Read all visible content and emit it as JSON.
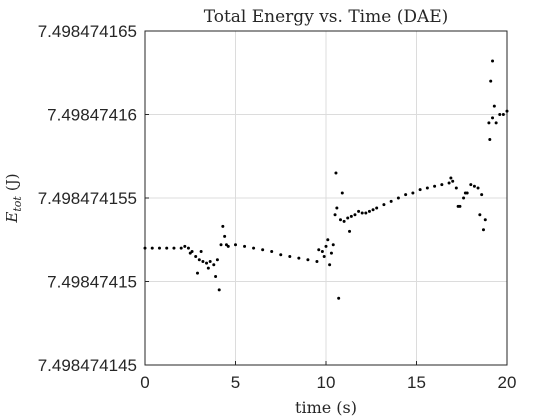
{
  "chart_data": {
    "type": "scatter",
    "title": "Total Energy vs. Time (DAE)",
    "xlabel": "time (s)",
    "ylabel": "E_tot (J)",
    "ylabel_main": "E",
    "ylabel_sub": "tot",
    "ylabel_unit": "(J)",
    "xlim": [
      0,
      20
    ],
    "ylim": [
      7.498474145,
      7.498474165
    ],
    "x_ticks": [
      0,
      5,
      10,
      15,
      20
    ],
    "x_tick_labels": [
      "0",
      "5",
      "10",
      "15",
      "20"
    ],
    "y_ticks": [
      7.498474145,
      7.49847415,
      7.498474155,
      7.49847416,
      7.498474165
    ],
    "y_tick_labels": [
      "7.498474145",
      "7.49847415",
      "7.498474155",
      "7.49847416",
      "7.498474165"
    ],
    "grid": true,
    "marker_color": "#000000",
    "series": [
      {
        "x": [
          0.0,
          0.4,
          0.8,
          1.2,
          1.6,
          2.0,
          2.2,
          2.4,
          2.6,
          2.8,
          3.0,
          3.2,
          3.4,
          3.6,
          3.8,
          4.0,
          4.2,
          2.5,
          2.9,
          3.1,
          3.5,
          3.9,
          4.1,
          4.3,
          4.4,
          4.6,
          4.5,
          5.0,
          5.5,
          6.0,
          6.5,
          7.0,
          7.5,
          8.0,
          8.5,
          9.0,
          9.5,
          9.8,
          10.0,
          10.2,
          9.6,
          9.9,
          10.1,
          10.3,
          10.4,
          10.5,
          10.6,
          10.8,
          11.0,
          11.2,
          11.4,
          11.6,
          11.8,
          12.0,
          12.2,
          12.4,
          12.6,
          10.55,
          10.7,
          10.9,
          11.3,
          12.8,
          13.2,
          13.6,
          14.0,
          14.4,
          14.8,
          15.2,
          15.6,
          16.0,
          16.4,
          16.8,
          17.0,
          17.2,
          17.4,
          17.6,
          17.8,
          18.0,
          18.2,
          18.4,
          18.6,
          16.9,
          17.3,
          17.7,
          18.5,
          18.7,
          18.8,
          19.0,
          19.2,
          19.4,
          19.6,
          19.8,
          20.0,
          19.1,
          19.2,
          19.3,
          19.05
        ],
        "y": [
          7.498474152,
          7.498474152,
          7.498474152,
          7.498474152,
          7.498474152,
          7.498474152,
          7.4984741521,
          7.498474152,
          7.4984741518,
          7.4984741515,
          7.4984741513,
          7.4984741512,
          7.4984741511,
          7.4984741512,
          7.498474151,
          7.4984741513,
          7.4984741522,
          7.4984741517,
          7.4984741505,
          7.4984741518,
          7.4984741508,
          7.4984741503,
          7.4984741495,
          7.4984741533,
          7.4984741527,
          7.4984741521,
          7.4984741522,
          7.4984741522,
          7.4984741521,
          7.498474152,
          7.4984741519,
          7.4984741518,
          7.4984741516,
          7.4984741515,
          7.4984741514,
          7.4984741513,
          7.4984741512,
          7.4984741518,
          7.4984741521,
          7.498474151,
          7.4984741519,
          7.4984741515,
          7.4984741525,
          7.4984741517,
          7.4984741522,
          7.498474154,
          7.4984741544,
          7.4984741537,
          7.4984741536,
          7.4984741538,
          7.4984741539,
          7.498474154,
          7.4984741542,
          7.4984741541,
          7.4984741541,
          7.4984741542,
          7.4984741543,
          7.4984741565,
          7.498474149,
          7.4984741553,
          7.498474153,
          7.4984741544,
          7.4984741546,
          7.4984741548,
          7.498474155,
          7.4984741552,
          7.4984741553,
          7.4984741555,
          7.4984741556,
          7.4984741557,
          7.4984741558,
          7.4984741559,
          7.498474156,
          7.4984741556,
          7.4984741545,
          7.498474155,
          7.4984741553,
          7.4984741558,
          7.4984741557,
          7.4984741556,
          7.4984741552,
          7.4984741562,
          7.4984741545,
          7.4984741553,
          7.498474154,
          7.4984741531,
          7.4984741537,
          7.4984741595,
          7.4984741598,
          7.4984741595,
          7.49847416,
          7.49847416,
          7.4984741602,
          7.498474162,
          7.4984741632,
          7.4984741605,
          7.4984741585
        ]
      }
    ]
  }
}
